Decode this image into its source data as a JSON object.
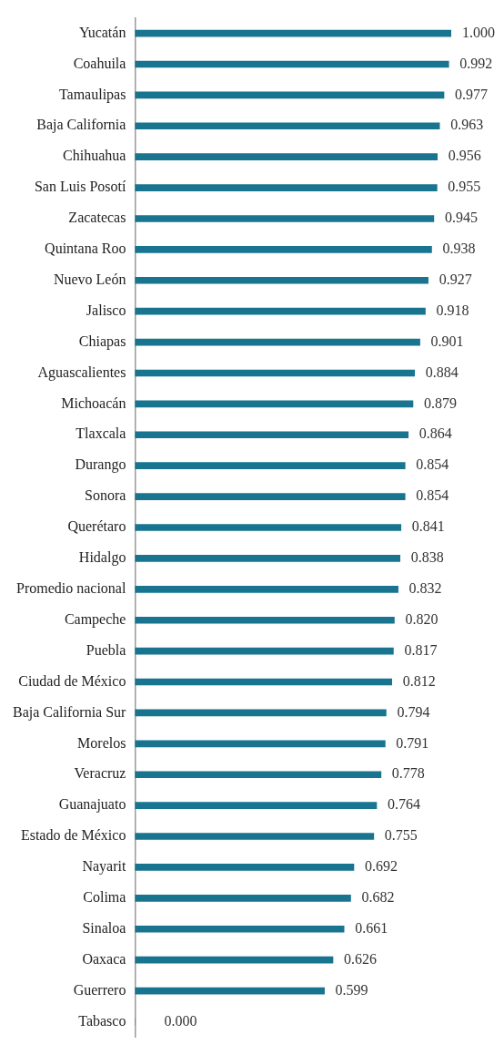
{
  "chart_data": {
    "type": "bar",
    "orientation": "horizontal",
    "categories": [
      "Yucatán",
      "Coahuila",
      "Tamaulipas",
      "Baja California",
      "Chihuahua",
      "San Luis Posotí",
      "Zacatecas",
      "Quintana Roo",
      "Nuevo León",
      "Jalisco",
      "Chiapas",
      "Aguascalientes",
      "Michoacán",
      "Tlaxcala",
      "Durango",
      "Sonora",
      "Querétaro",
      "Hidalgo",
      "Promedio nacional",
      "Campeche",
      "Puebla",
      "Ciudad de México",
      "Baja California Sur",
      "Morelos",
      "Veracruz",
      "Guanajuato",
      "Estado de México",
      "Nayarit",
      "Colima",
      "Sinaloa",
      "Oaxaca",
      "Guerrero",
      "Tabasco"
    ],
    "values": [
      1.0,
      0.992,
      0.977,
      0.963,
      0.956,
      0.955,
      0.945,
      0.938,
      0.927,
      0.918,
      0.901,
      0.884,
      0.879,
      0.864,
      0.854,
      0.854,
      0.841,
      0.838,
      0.832,
      0.82,
      0.817,
      0.812,
      0.794,
      0.791,
      0.778,
      0.764,
      0.755,
      0.692,
      0.682,
      0.661,
      0.626,
      0.599,
      0.0
    ],
    "value_labels": [
      "1.000",
      "0.992",
      "0.977",
      "0.963",
      "0.956",
      "0.955",
      "0.945",
      "0.938",
      "0.927",
      "0.918",
      "0.901",
      "0.884",
      "0.879",
      "0.864",
      "0.854",
      "0.854",
      "0.841",
      "0.838",
      "0.832",
      "0.820",
      "0.817",
      "0.812",
      "0.794",
      "0.791",
      "0.778",
      "0.764",
      "0.755",
      "0.692",
      "0.682",
      "0.661",
      "0.626",
      "0.599",
      "0.000"
    ],
    "color": "#18748f",
    "tick_labels": "y",
    "legend": false
  }
}
